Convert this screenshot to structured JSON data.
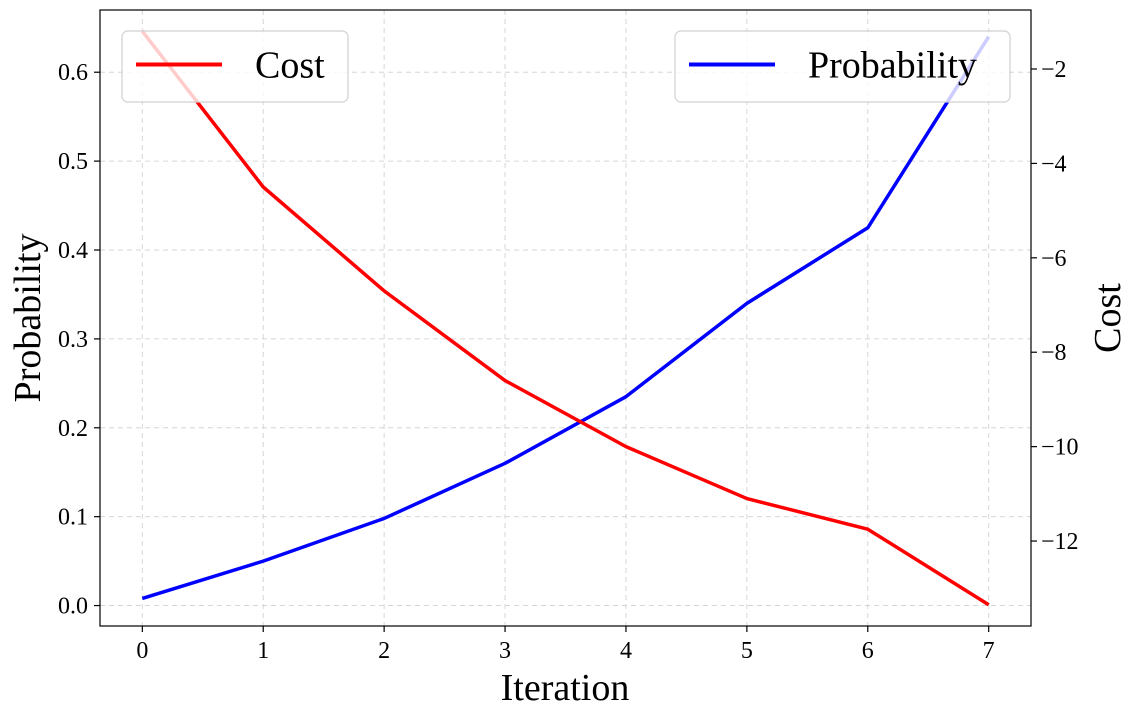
{
  "chart_data": {
    "type": "line",
    "title": "",
    "xlabel": "Iteration",
    "ylabel": "Probability",
    "y2label": "Cost",
    "x": [
      0,
      1,
      2,
      3,
      4,
      5,
      6,
      7
    ],
    "xticks": [
      "0",
      "1",
      "2",
      "3",
      "4",
      "5",
      "6",
      "7"
    ],
    "xlim": [
      -0.35,
      7.35
    ],
    "ylim": [
      -0.023,
      0.67
    ],
    "y2lim": [
      -13.8,
      -0.75
    ],
    "yticks": [
      "0.0",
      "0.1",
      "0.2",
      "0.3",
      "0.4",
      "0.5",
      "0.6"
    ],
    "y2ticks": [
      "−12",
      "−10",
      "−8",
      "−6",
      "−4",
      "−2"
    ],
    "grid": true,
    "series": [
      {
        "name": "Probability",
        "axis": "left",
        "color": "#0000ff",
        "values": [
          0.008,
          0.05,
          0.098,
          0.16,
          0.235,
          0.34,
          0.425,
          0.64
        ]
      },
      {
        "name": "Cost",
        "axis": "right",
        "color": "#ff0000",
        "values": [
          -1.2,
          -4.5,
          -6.7,
          -8.6,
          -10.0,
          -11.1,
          -11.75,
          -13.35
        ]
      }
    ],
    "legends": [
      {
        "label": "Cost",
        "color": "#ff0000",
        "placement": "top-left"
      },
      {
        "label": "Probability",
        "color": "#0000ff",
        "placement": "top-right"
      }
    ]
  }
}
